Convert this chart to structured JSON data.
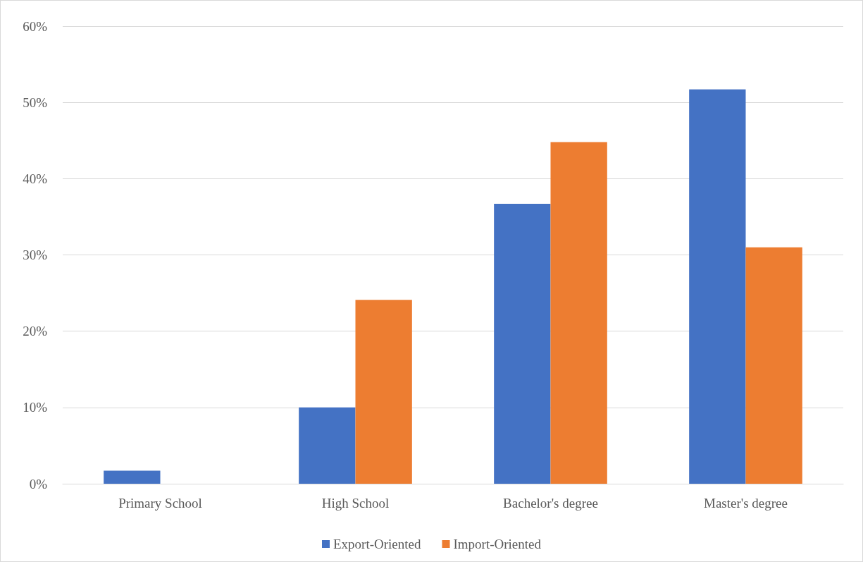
{
  "chart_data": {
    "type": "bar",
    "categories": [
      "Primary School",
      "High School",
      "Bachelor's degree",
      "Master's degree"
    ],
    "series": [
      {
        "name": "Export-Oriented",
        "color": "#4472c4",
        "values": [
          1.7,
          10.0,
          36.7,
          51.7
        ]
      },
      {
        "name": "Import-Oriented",
        "color": "#ed7d31",
        "values": [
          0,
          24.1,
          44.8,
          31.0
        ]
      }
    ],
    "ylim": [
      0,
      60
    ],
    "yticks": [
      {
        "value": 0,
        "label": "0%"
      },
      {
        "value": 10,
        "label": "10%"
      },
      {
        "value": 20,
        "label": "20%"
      },
      {
        "value": 30,
        "label": "30%"
      },
      {
        "value": 40,
        "label": "40%"
      },
      {
        "value": 50,
        "label": "50%"
      },
      {
        "value": 60,
        "label": "60%"
      }
    ],
    "grid": "y",
    "legend": "bottom"
  }
}
